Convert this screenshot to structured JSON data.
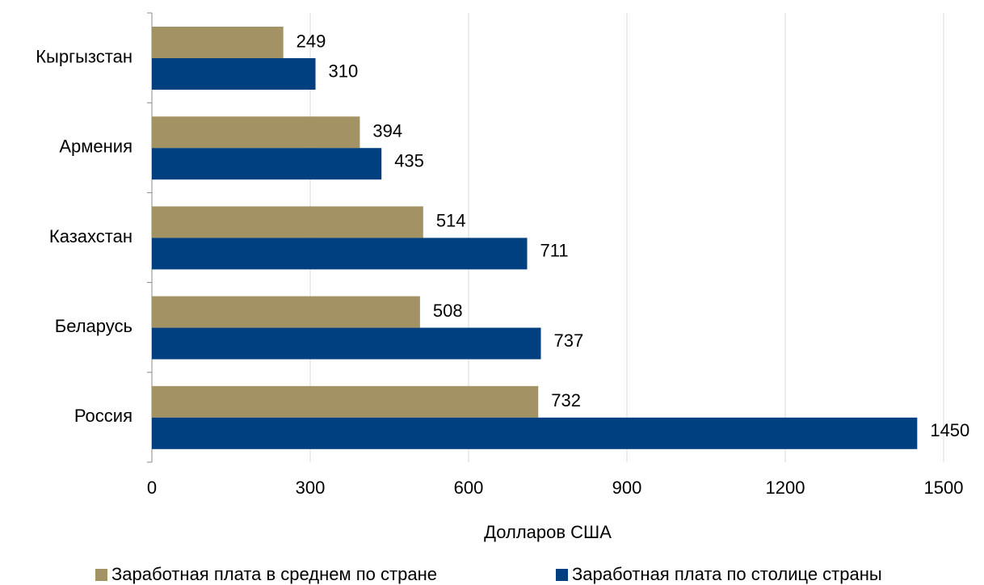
{
  "chart_data": {
    "type": "bar",
    "orientation": "horizontal",
    "categories": [
      "Кыргызстан",
      "Армения",
      "Казахстан",
      "Беларусь",
      "Россия"
    ],
    "series": [
      {
        "name": "Заработная плата в среднем по стране",
        "color": "#a39263",
        "values": [
          249,
          394,
          514,
          508,
          732
        ]
      },
      {
        "name": "Заработная плата по столице страны",
        "color": "#004080",
        "values": [
          310,
          435,
          711,
          737,
          1450
        ]
      }
    ],
    "xlabel": "Долларов США",
    "xlim": [
      0,
      1500
    ],
    "xticks": [
      0,
      300,
      600,
      900,
      1200,
      1500
    ],
    "grid": true,
    "legend": "bottom"
  }
}
